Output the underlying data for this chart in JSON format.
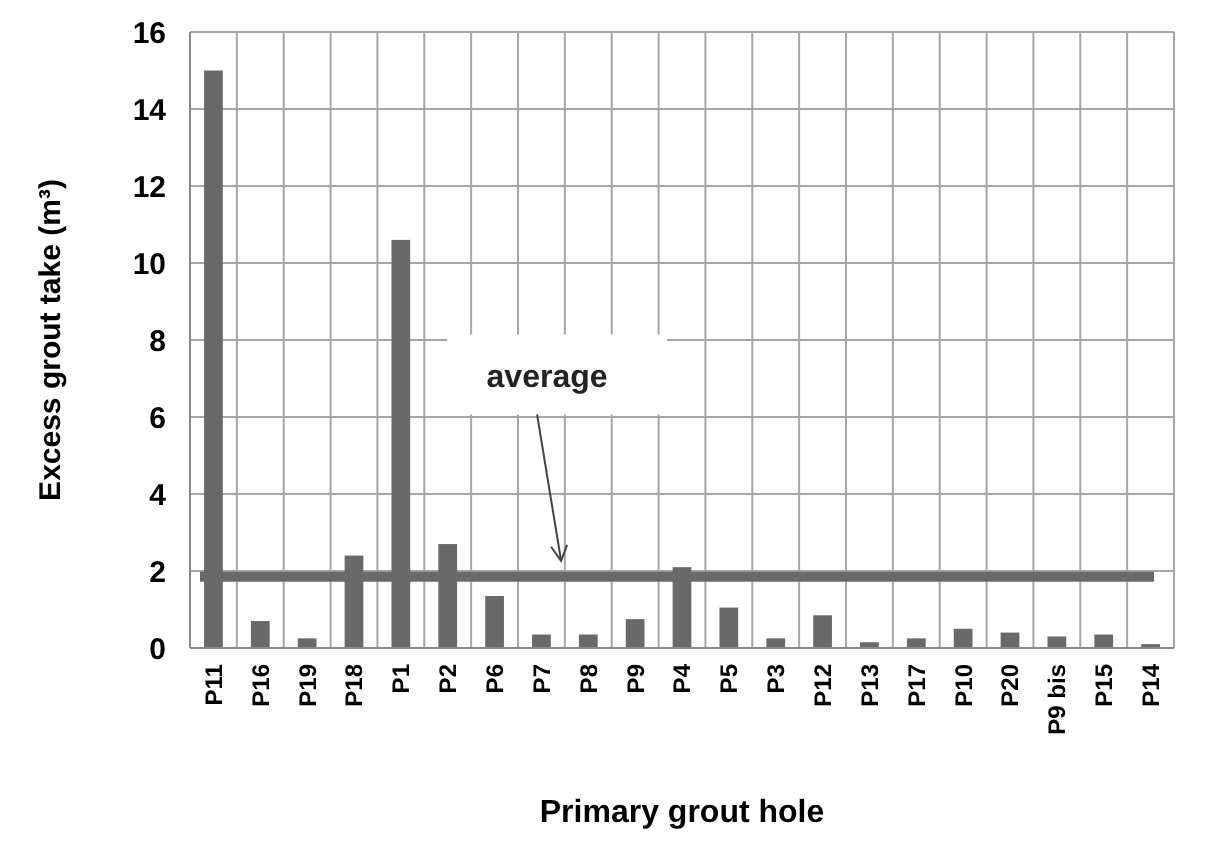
{
  "chart_data": {
    "type": "bar",
    "xlabel": "Primary grout hole",
    "ylabel": "Excess grout take (m³)",
    "categories": [
      "P11",
      "P16",
      "P19",
      "P18",
      "P1",
      "P2",
      "P6",
      "P7",
      "P8",
      "P9",
      "P4",
      "P5",
      "P3",
      "P12",
      "P13",
      "P17",
      "P10",
      "P20",
      "P9 bis",
      "P15",
      "P14"
    ],
    "values": [
      15.0,
      0.7,
      0.25,
      2.4,
      10.6,
      2.7,
      1.35,
      0.35,
      0.35,
      0.75,
      2.1,
      1.05,
      0.25,
      0.85,
      0.15,
      0.25,
      0.5,
      0.4,
      0.3,
      0.35,
      0.1
    ],
    "color": "#696969",
    "ylim": [
      0,
      16
    ],
    "yticks": [
      0,
      2,
      4,
      6,
      8,
      10,
      12,
      14,
      16
    ],
    "grid": true,
    "ref_lines": [
      {
        "axis": "y",
        "value": 1.85,
        "label": "average",
        "color": "#696969"
      }
    ]
  }
}
